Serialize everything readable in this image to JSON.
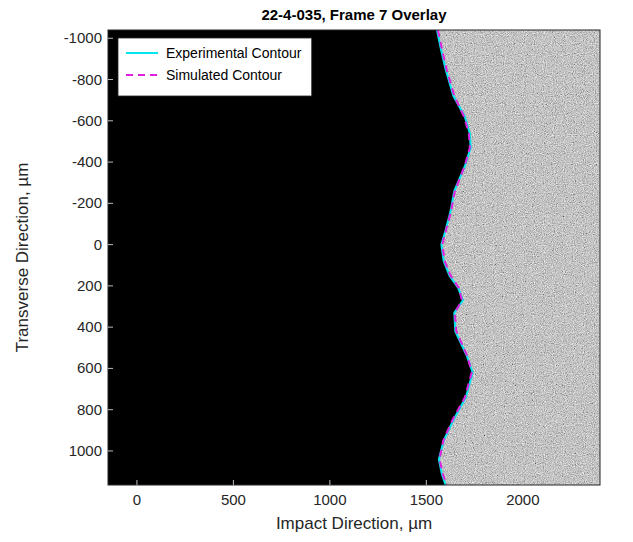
{
  "chart_data": {
    "type": "line",
    "title": "22-4-035, Frame 7 Overlay",
    "x_label": "Impact Direction, µm",
    "y_label": "Transverse Direction, µm",
    "xlim": [
      -150,
      2400
    ],
    "ylim": [
      -1040,
      1165
    ],
    "xticks": [
      0,
      500,
      1000,
      1500,
      2000
    ],
    "yticks": [
      -1000,
      -800,
      -600,
      -400,
      -200,
      0,
      200,
      400,
      600,
      800,
      1000
    ],
    "legend": "upper left",
    "grid": false,
    "series": [
      {
        "name": "Experimental Contour",
        "color": "#00e5ee",
        "line_style": "solid",
        "x": [
          1555,
          1575,
          1600,
          1640,
          1700,
          1725,
          1730,
          1700,
          1645,
          1625,
          1600,
          1578,
          1590,
          1620,
          1665,
          1690,
          1645,
          1650,
          1710,
          1740,
          1705,
          1640,
          1590,
          1565,
          1580,
          1600
        ],
        "values": [
          -1040,
          -950,
          -850,
          -720,
          -620,
          -540,
          -470,
          -380,
          -260,
          -160,
          -70,
          0,
          80,
          150,
          210,
          270,
          330,
          420,
          540,
          620,
          740,
          850,
          950,
          1040,
          1110,
          1165
        ]
      },
      {
        "name": "Simulated Contour",
        "color": "#e020e0",
        "line_style": "dashed",
        "x": [
          1560,
          1580,
          1605,
          1645,
          1695,
          1720,
          1725,
          1698,
          1648,
          1628,
          1602,
          1582,
          1595,
          1625,
          1668,
          1685,
          1648,
          1655,
          1712,
          1735,
          1700,
          1635,
          1588,
          1568,
          1585,
          1605
        ],
        "values": [
          -1040,
          -950,
          -850,
          -720,
          -620,
          -540,
          -470,
          -380,
          -260,
          -160,
          -70,
          0,
          80,
          150,
          210,
          270,
          330,
          420,
          540,
          620,
          740,
          850,
          950,
          1040,
          1110,
          1165
        ]
      }
    ]
  }
}
